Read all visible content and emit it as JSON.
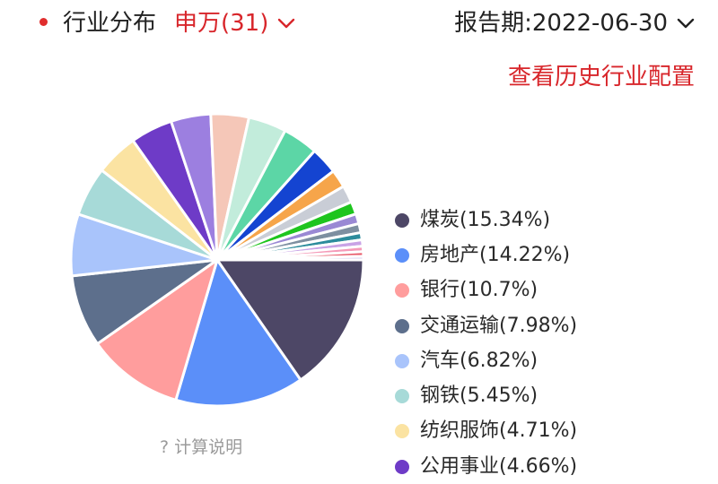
{
  "header": {
    "title": "行业分布",
    "category_label": "申万(31)",
    "period_label": "报告期:2022-06-30",
    "history_link": "查看历史行业配置"
  },
  "colors": {
    "accent": "#d8262b",
    "dot": "#e02d2d"
  },
  "footer": {
    "calc_note": "? 计算说明"
  },
  "chart_data": {
    "type": "pie",
    "start_angle_deg": 0,
    "direction": "clockwise",
    "series": [
      {
        "name": "煤炭",
        "value": 15.34,
        "color": "#4d4766"
      },
      {
        "name": "房地产",
        "value": 14.22,
        "color": "#5b8ff9"
      },
      {
        "name": "银行",
        "value": 10.7,
        "color": "#ff9d9d"
      },
      {
        "name": "交通运输",
        "value": 7.98,
        "color": "#5d6f8c"
      },
      {
        "name": "汽车",
        "value": 6.82,
        "color": "#a9c4fb"
      },
      {
        "name": "钢铁",
        "value": 5.45,
        "color": "#a7dad8"
      },
      {
        "name": "纺织服饰",
        "value": 4.71,
        "color": "#fbe3a2"
      },
      {
        "name": "公用事业",
        "value": 4.66,
        "color": "#6e3bc7"
      },
      {
        "value": 4.4,
        "color": "#9c7fe0"
      },
      {
        "value": 4.2,
        "color": "#f5c7b8"
      },
      {
        "value": 4.2,
        "color": "#c2ecdb"
      },
      {
        "value": 3.9,
        "color": "#5cd6a6"
      },
      {
        "value": 3.0,
        "color": "#1444d1"
      },
      {
        "value": 2.0,
        "color": "#f6a54a"
      },
      {
        "value": 1.9,
        "color": "#c9cdd6"
      },
      {
        "value": 1.4,
        "color": "#1ec51e"
      },
      {
        "value": 1.1,
        "color": "#9a89d4"
      },
      {
        "value": 1.0,
        "color": "#7d8fa0"
      },
      {
        "value": 0.8,
        "color": "#2c8c9c"
      },
      {
        "value": 0.7,
        "color": "#c9a3e6"
      },
      {
        "value": 0.6,
        "color": "#f59ab8"
      },
      {
        "value": 0.5,
        "color": "#e85a6a"
      },
      {
        "value": 0.4,
        "color": "#d9d2f0"
      }
    ]
  }
}
